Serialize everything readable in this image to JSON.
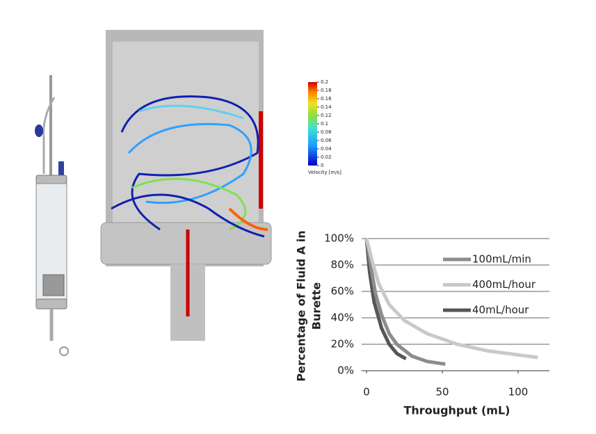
{
  "chart_data": {
    "type": "line",
    "x_label": "Throughput (mL)",
    "y_label": [
      "Percentage of Fluid A in",
      "Burette"
    ],
    "xlim": [
      0,
      120
    ],
    "xticks": [
      0,
      50,
      100
    ],
    "ylim": [
      0,
      100
    ],
    "yticks": [
      {
        "value": 0,
        "label": "0%"
      },
      {
        "value": 20,
        "label": "20%"
      },
      {
        "value": 40,
        "label": "40%"
      },
      {
        "value": 60,
        "label": "60%"
      },
      {
        "value": 80,
        "label": "80%"
      },
      {
        "value": 100,
        "label": "100%"
      }
    ],
    "grid": true,
    "series": [
      {
        "name": "100mL/min",
        "color": "#8c8c8c",
        "x": [
          0,
          3,
          6,
          10,
          15,
          20,
          30,
          40,
          52
        ],
        "values": [
          100,
          78,
          58,
          42,
          28,
          20,
          11,
          7,
          5
        ]
      },
      {
        "name": "400mL/hour",
        "color": "#c9c9c9",
        "x": [
          0,
          4,
          8,
          15,
          25,
          40,
          60,
          80,
          113
        ],
        "values": [
          100,
          82,
          66,
          50,
          38,
          28,
          20,
          15,
          10
        ]
      },
      {
        "name": "40mL/hour",
        "color": "#555555",
        "x": [
          0,
          2,
          5,
          10,
          15,
          20,
          26
        ],
        "values": [
          100,
          75,
          52,
          32,
          20,
          13,
          9
        ]
      }
    ]
  },
  "cfd_colorbar": {
    "ticks": [
      0.2,
      0.18,
      0.16,
      0.14,
      0.12,
      0.1,
      0.08,
      0.06,
      0.04,
      0.02,
      0
    ],
    "label": "Velocity [m/s]"
  }
}
